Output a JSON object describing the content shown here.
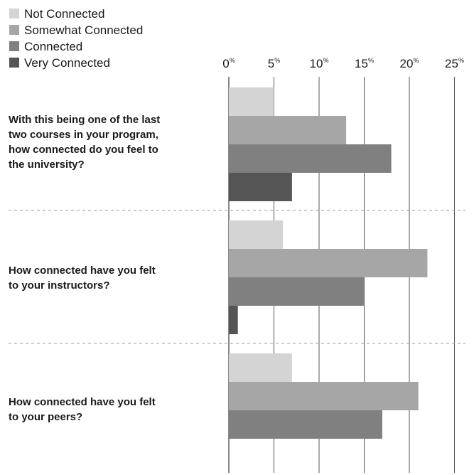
{
  "chart_data": {
    "type": "bar",
    "orientation": "horizontal",
    "title": "",
    "xlabel": "",
    "ylabel": "",
    "xlim": [
      0,
      25
    ],
    "ticks": [
      {
        "value": 0,
        "label": "0",
        "unit": "%"
      },
      {
        "value": 5,
        "label": "5",
        "unit": "%"
      },
      {
        "value": 10,
        "label": "10",
        "unit": "%"
      },
      {
        "value": 15,
        "label": "15",
        "unit": "%"
      },
      {
        "value": 20,
        "label": "20",
        "unit": "%"
      },
      {
        "value": 25,
        "label": "25",
        "unit": "%"
      }
    ],
    "legend_position": "top-left",
    "gridlines": true,
    "categories": [
      [
        "With this being one of the last",
        "two courses in your program,",
        "how connected do you feel to",
        "the university?"
      ],
      [
        "How connected have you felt",
        "to your instructors?"
      ],
      [
        "How connected have you felt",
        "to your peers?"
      ]
    ],
    "series": [
      {
        "name": "Not Connected",
        "color": "#d4d4d4",
        "values": [
          5,
          6,
          7
        ]
      },
      {
        "name": "Somewhat Connected",
        "color": "#a6a6a6",
        "values": [
          13,
          22,
          21
        ]
      },
      {
        "name": "Connected",
        "color": "#808080",
        "values": [
          18,
          15,
          17
        ]
      },
      {
        "name": "Very Connected",
        "color": "#555555",
        "values": [
          7,
          1,
          null
        ]
      }
    ]
  }
}
